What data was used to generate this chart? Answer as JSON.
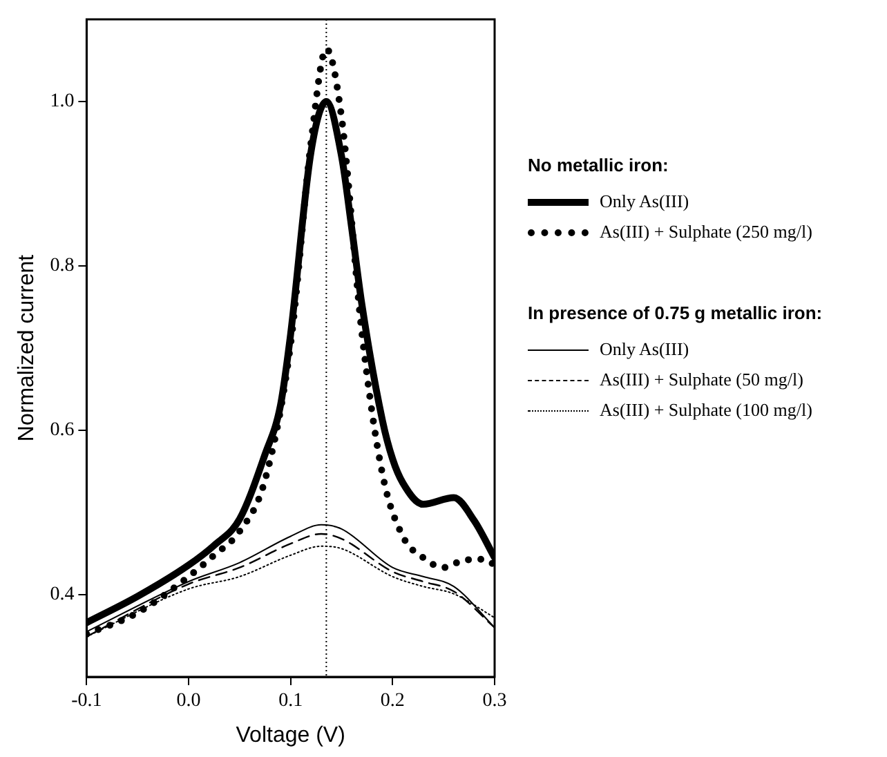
{
  "chart_data": {
    "type": "line",
    "xlabel": "Voltage (V)",
    "ylabel": "Normalized current",
    "xlim": [
      -0.1,
      0.3
    ],
    "xticks": [
      {
        "value": -0.1,
        "label": "-0.1"
      },
      {
        "value": 0,
        "label": "0.0"
      },
      {
        "value": 0.1,
        "label": "0.1"
      },
      {
        "value": 0.2,
        "label": "0.2"
      },
      {
        "value": 0.3,
        "label": "0.3"
      }
    ],
    "ylim": [
      0.3,
      1.1
    ],
    "yticks": [
      {
        "value": 0.4,
        "label": "0.4"
      },
      {
        "value": 0.6,
        "label": "0.6"
      },
      {
        "value": 0.8,
        "label": "0.8"
      },
      {
        "value": 1.0,
        "label": "1.0"
      }
    ],
    "grid": false,
    "legend": "right",
    "marker": "none",
    "annotations": [
      "No metallic iron:",
      "In presence of 0.75 g metallic iron:"
    ],
    "ref_lines": [
      {
        "axis": "x",
        "value": 0.135,
        "label": null,
        "color": "#000000",
        "line_style": "dotted"
      }
    ],
    "series": [
      {
        "name": "Only As(III)",
        "color": "#000000",
        "line_style": "solid",
        "x": [
          -0.1,
          -0.05,
          0,
          0.025,
          0.05,
          0.075,
          0.09,
          0.1,
          0.12,
          0.135,
          0.15,
          0.16,
          0.17,
          0.19,
          0.2,
          0.21,
          0.23,
          0.26,
          0.28,
          0.3
        ],
        "values": [
          0.366,
          0.398,
          0.436,
          0.46,
          0.492,
          0.571,
          0.63,
          0.717,
          0.939,
          1.0,
          0.933,
          0.845,
          0.752,
          0.612,
          0.565,
          0.536,
          0.51,
          0.518,
          0.49,
          0.445
        ]
      },
      {
        "name": "As(III) + Sulphate (250 mg/l)",
        "color": "#000000",
        "line_style": "dotted",
        "x": [
          -0.1,
          -0.05,
          0,
          0.025,
          0.05,
          0.075,
          0.1,
          0.12,
          0.135,
          0.15,
          0.17,
          0.19,
          0.21,
          0.23,
          0.25,
          0.27,
          0.29,
          0.3
        ],
        "values": [
          0.352,
          0.378,
          0.422,
          0.448,
          0.477,
          0.54,
          0.705,
          0.95,
          1.064,
          0.98,
          0.717,
          0.547,
          0.471,
          0.445,
          0.433,
          0.442,
          0.443,
          0.436
        ]
      },
      {
        "name": "Only As(III)",
        "color": "#000000",
        "line_style": "solid",
        "x": [
          -0.1,
          0,
          0.05,
          0.1,
          0.13,
          0.15,
          0.2,
          0.23,
          0.26,
          0.3
        ],
        "values": [
          0.355,
          0.416,
          0.439,
          0.471,
          0.485,
          0.48,
          0.433,
          0.422,
          0.41,
          0.36
        ]
      },
      {
        "name": "As(III) + Sulphate (50 mg/l)",
        "color": "#000000",
        "line_style": "dashed",
        "x": [
          -0.1,
          0,
          0.05,
          0.1,
          0.13,
          0.15,
          0.2,
          0.23,
          0.26,
          0.3
        ],
        "values": [
          0.349,
          0.413,
          0.433,
          0.462,
          0.474,
          0.468,
          0.428,
          0.416,
          0.404,
          0.36
        ]
      },
      {
        "name": "As(III) + Sulphate (100 mg/l)",
        "color": "#000000",
        "line_style": "dotted",
        "x": [
          -0.1,
          0,
          0.05,
          0.1,
          0.13,
          0.15,
          0.2,
          0.23,
          0.26,
          0.3
        ],
        "values": [
          0.349,
          0.407,
          0.422,
          0.448,
          0.459,
          0.456,
          0.422,
          0.41,
          0.401,
          0.372
        ]
      }
    ]
  }
}
